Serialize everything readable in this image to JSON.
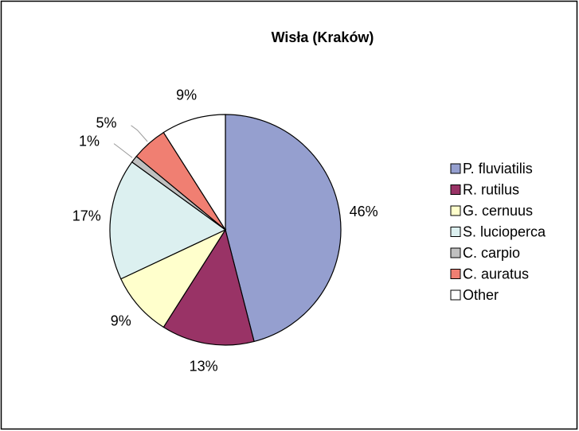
{
  "chart_data": {
    "type": "pie",
    "title": "Wisła (Kraków)",
    "categories": [
      "P. fluviatilis",
      "R. rutilus",
      "G. cernuus",
      "S. lucioperca",
      "C. carpio",
      "C. auratus",
      "Other"
    ],
    "values": [
      46,
      13,
      9,
      17,
      1,
      5,
      9
    ],
    "value_labels": [
      "46%",
      "13%",
      "9%",
      "17%",
      "1%",
      "5%",
      "9%"
    ],
    "colors": [
      "#959fcf",
      "#993366",
      "#ffffcc",
      "#dcf0f0",
      "#c0c0c0",
      "#f07f72",
      "#ffffff"
    ],
    "legend": "right"
  }
}
